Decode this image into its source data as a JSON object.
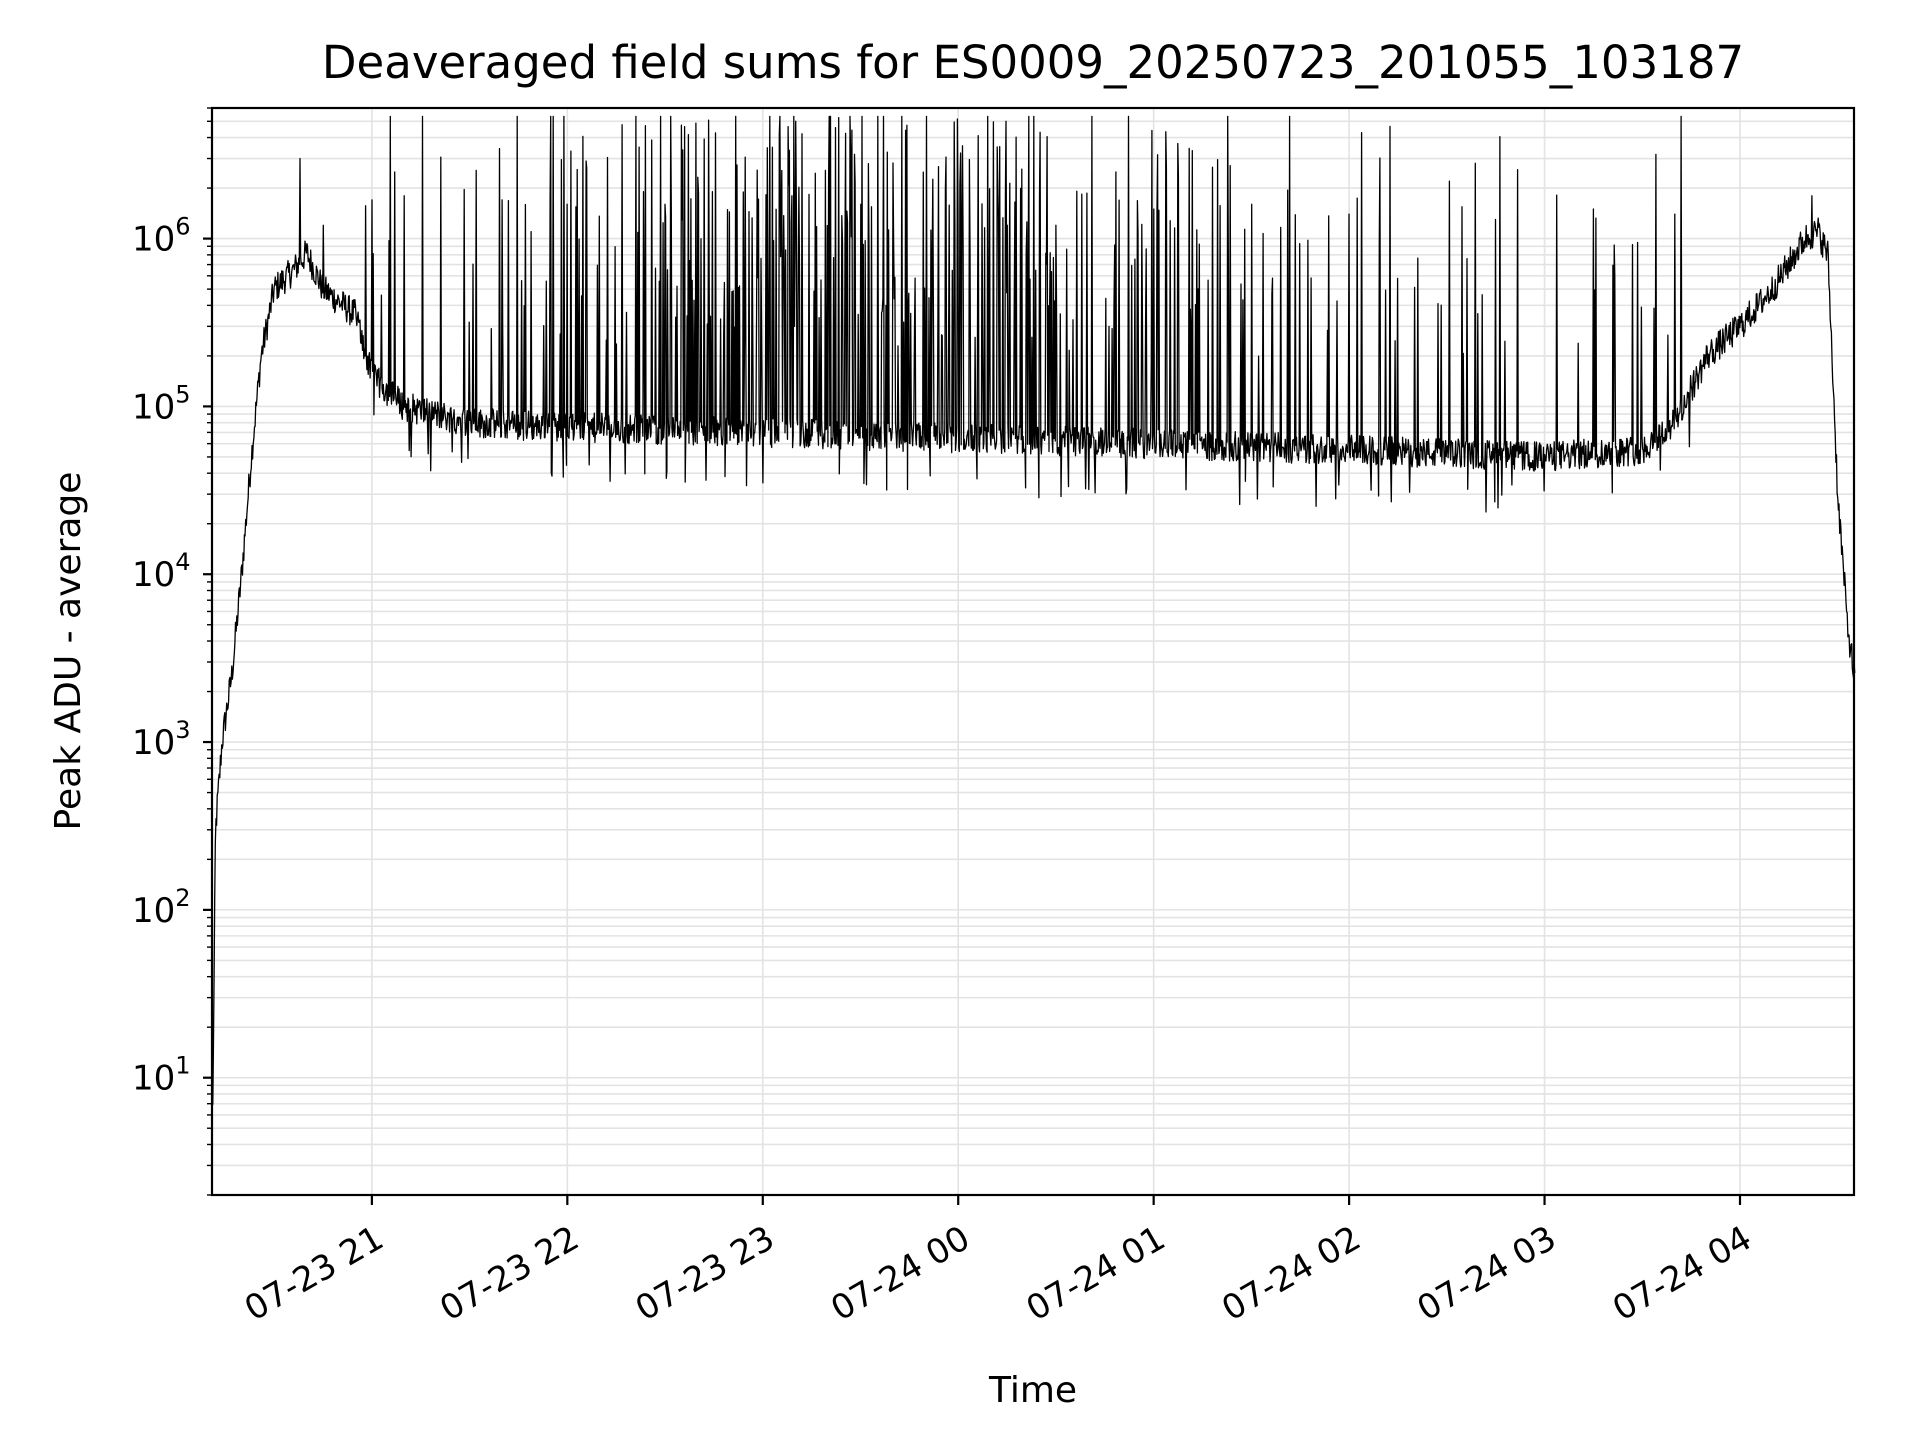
{
  "chart_data": {
    "type": "line",
    "title": "Deaveraged field sums for ES0009_20250723_201055_103187",
    "xlabel": "Time",
    "ylabel": "Peak ADU - average",
    "yscale": "log",
    "ylim": [
      2,
      6000000
    ],
    "xlim": [
      "2025-07-23 20:10:55",
      "2025-07-24 04:35:00"
    ],
    "grid": true,
    "xticks": [
      {
        "t": "2025-07-23 21:00",
        "label": "07-23 21"
      },
      {
        "t": "2025-07-23 22:00",
        "label": "07-23 22"
      },
      {
        "t": "2025-07-23 23:00",
        "label": "07-23 23"
      },
      {
        "t": "2025-07-24 00:00",
        "label": "07-24 00"
      },
      {
        "t": "2025-07-24 01:00",
        "label": "07-24 01"
      },
      {
        "t": "2025-07-24 02:00",
        "label": "07-24 02"
      },
      {
        "t": "2025-07-24 03:00",
        "label": "07-24 03"
      },
      {
        "t": "2025-07-24 04:00",
        "label": "07-24 04"
      }
    ],
    "yticks": [
      {
        "value": 10,
        "base": "10",
        "exp": "1"
      },
      {
        "value": 100,
        "base": "10",
        "exp": "2"
      },
      {
        "value": 1000,
        "base": "10",
        "exp": "3"
      },
      {
        "value": 10000,
        "base": "10",
        "exp": "4"
      },
      {
        "value": 100000,
        "base": "10",
        "exp": "5"
      },
      {
        "value": 1000000,
        "base": "10",
        "exp": "6"
      }
    ],
    "series": [
      {
        "color": "#000000",
        "envelope": [
          {
            "t": "2025-07-23 20:11:00",
            "y": 3
          },
          {
            "t": "2025-07-23 20:12:00",
            "y": 300
          },
          {
            "t": "2025-07-23 20:14:00",
            "y": 1000
          },
          {
            "t": "2025-07-23 20:17:00",
            "y": 2500
          },
          {
            "t": "2025-07-23 20:20:00",
            "y": 10000
          },
          {
            "t": "2025-07-23 20:23:00",
            "y": 50000
          },
          {
            "t": "2025-07-23 20:26:00",
            "y": 200000
          },
          {
            "t": "2025-07-23 20:30:00",
            "y": 500000
          },
          {
            "t": "2025-07-23 20:36:00",
            "y": 650000
          },
          {
            "t": "2025-07-23 20:40:00",
            "y": 820000
          },
          {
            "t": "2025-07-23 20:45:00",
            "y": 500000
          },
          {
            "t": "2025-07-23 20:55:00",
            "y": 350000
          },
          {
            "t": "2025-07-23 21:00:00",
            "y": 150000
          },
          {
            "t": "2025-07-23 21:10:00",
            "y": 100000
          },
          {
            "t": "2025-07-23 21:30:00",
            "y": 80000
          },
          {
            "t": "2025-07-23 22:00:00",
            "y": 75000
          },
          {
            "t": "2025-07-23 23:00:00",
            "y": 70000
          },
          {
            "t": "2025-07-24 00:00:00",
            "y": 65000
          },
          {
            "t": "2025-07-24 01:00:00",
            "y": 60000
          },
          {
            "t": "2025-07-24 02:00:00",
            "y": 55000
          },
          {
            "t": "2025-07-24 03:00:00",
            "y": 50000
          },
          {
            "t": "2025-07-24 03:30:00",
            "y": 55000
          },
          {
            "t": "2025-07-24 03:40:00",
            "y": 80000
          },
          {
            "t": "2025-07-24 03:50:00",
            "y": 200000
          },
          {
            "t": "2025-07-24 04:00:00",
            "y": 300000
          },
          {
            "t": "2025-07-24 04:10:00",
            "y": 500000
          },
          {
            "t": "2025-07-24 04:20:00",
            "y": 1000000
          },
          {
            "t": "2025-07-24 04:24:00",
            "y": 1100000
          },
          {
            "t": "2025-07-24 04:27:00",
            "y": 800000
          },
          {
            "t": "2025-07-24 04:30:00",
            "y": 30000
          },
          {
            "t": "2025-07-24 04:33:00",
            "y": 5000
          },
          {
            "t": "2025-07-24 04:35:00",
            "y": 2500
          }
        ],
        "spikes": [
          {
            "t": "2025-07-23 20:38:00",
            "y": 3000000
          },
          {
            "t": "2025-07-23 20:45:00",
            "y": 1200000
          },
          {
            "t": "2025-07-23 21:00:00",
            "y": 1700000
          },
          {
            "t": "2025-07-23 21:10:00",
            "y": 1800000
          },
          {
            "t": "2025-07-23 21:40:00",
            "y": 1700000
          },
          {
            "t": "2025-07-23 22:00:00",
            "y": 1600000
          },
          {
            "t": "2025-07-23 22:30:00",
            "y": 1600000
          },
          {
            "t": "2025-07-23 23:00:00",
            "y": 1500000
          },
          {
            "t": "2025-07-23 23:30:00",
            "y": 1600000
          },
          {
            "t": "2025-07-24 00:00:00",
            "y": 1400000
          },
          {
            "t": "2025-07-24 00:30:00",
            "y": 1200000
          },
          {
            "t": "2025-07-24 01:00:00",
            "y": 1500000
          },
          {
            "t": "2025-07-24 01:30:00",
            "y": 1600000
          },
          {
            "t": "2025-07-24 02:00:00",
            "y": 1400000
          },
          {
            "t": "2025-07-24 02:45:00",
            "y": 1300000
          },
          {
            "t": "2025-07-24 03:15:00",
            "y": 1500000
          },
          {
            "t": "2025-07-24 03:40:00",
            "y": 1400000
          },
          {
            "t": "2025-07-24 04:22:00",
            "y": 1800000
          }
        ],
        "minima": [
          {
            "t": "2025-07-23 23:00:00",
            "y": 35000
          },
          {
            "t": "2025-07-24 00:40:00",
            "y": 32000
          },
          {
            "t": "2025-07-24 02:13:00",
            "y": 27000
          },
          {
            "t": "2025-07-24 02:50:00",
            "y": 34000
          }
        ]
      }
    ]
  }
}
